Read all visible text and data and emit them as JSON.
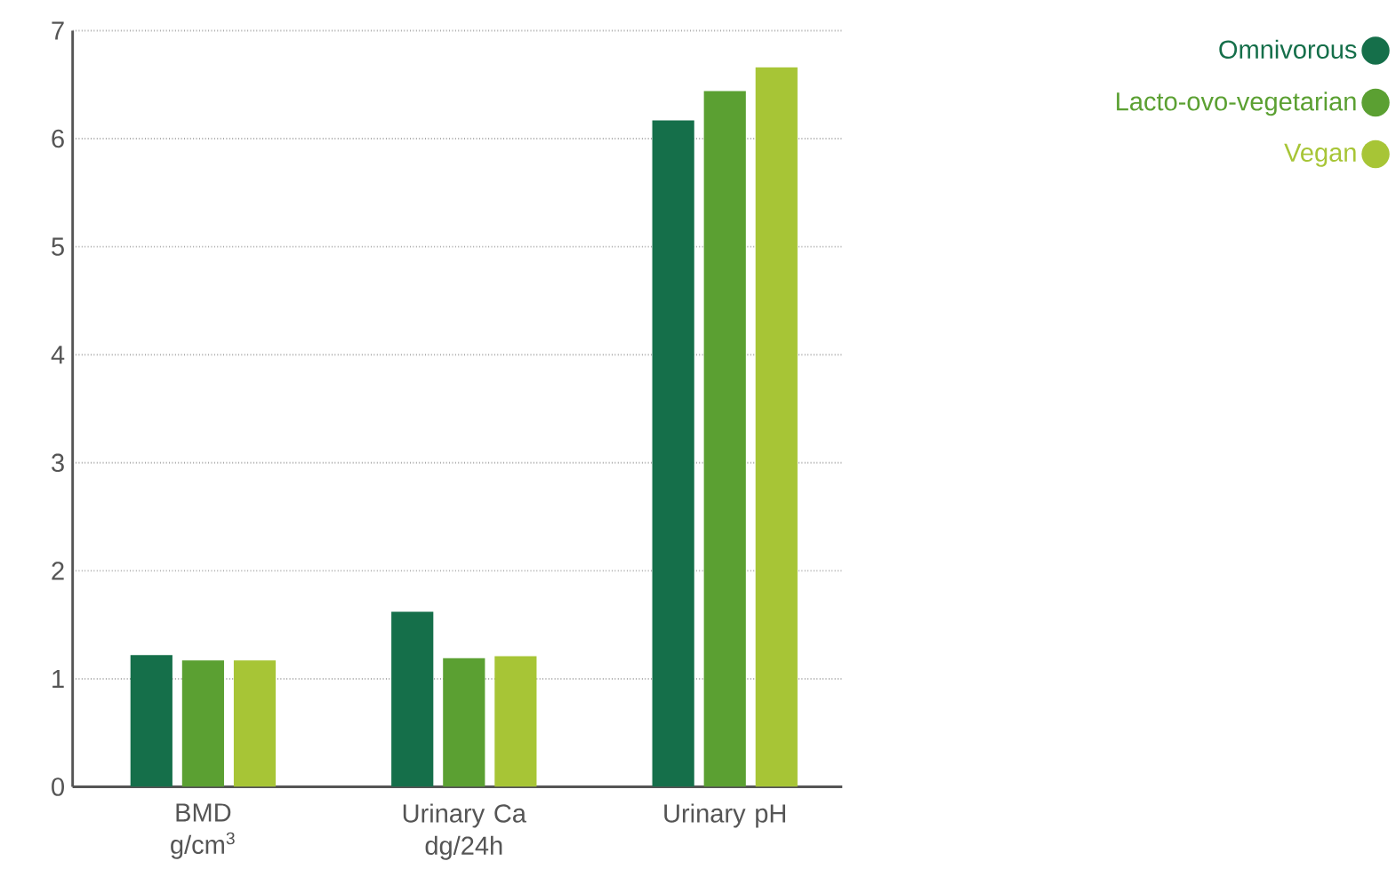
{
  "chart_data": {
    "type": "bar",
    "categories": [
      "BMD\ng/cm$^{3}$",
      "Urinary Ca\ndg/24h",
      "Urinary pH"
    ],
    "series": [
      {
        "name": "Omnivorous",
        "color": "#156f4a",
        "values": [
          1.22,
          1.62,
          6.17
        ]
      },
      {
        "name": "Lacto-ovo-vegetarian",
        "color": "#5ba032",
        "values": [
          1.17,
          1.19,
          6.44
        ]
      },
      {
        "name": "Vegan",
        "color": "#a7c536",
        "values": [
          1.17,
          1.21,
          6.66
        ]
      }
    ],
    "ylim": [
      0,
      7
    ],
    "yticks": [
      0,
      1,
      2,
      3,
      4,
      5,
      6,
      7
    ],
    "grid": "y",
    "legend": "top right"
  }
}
